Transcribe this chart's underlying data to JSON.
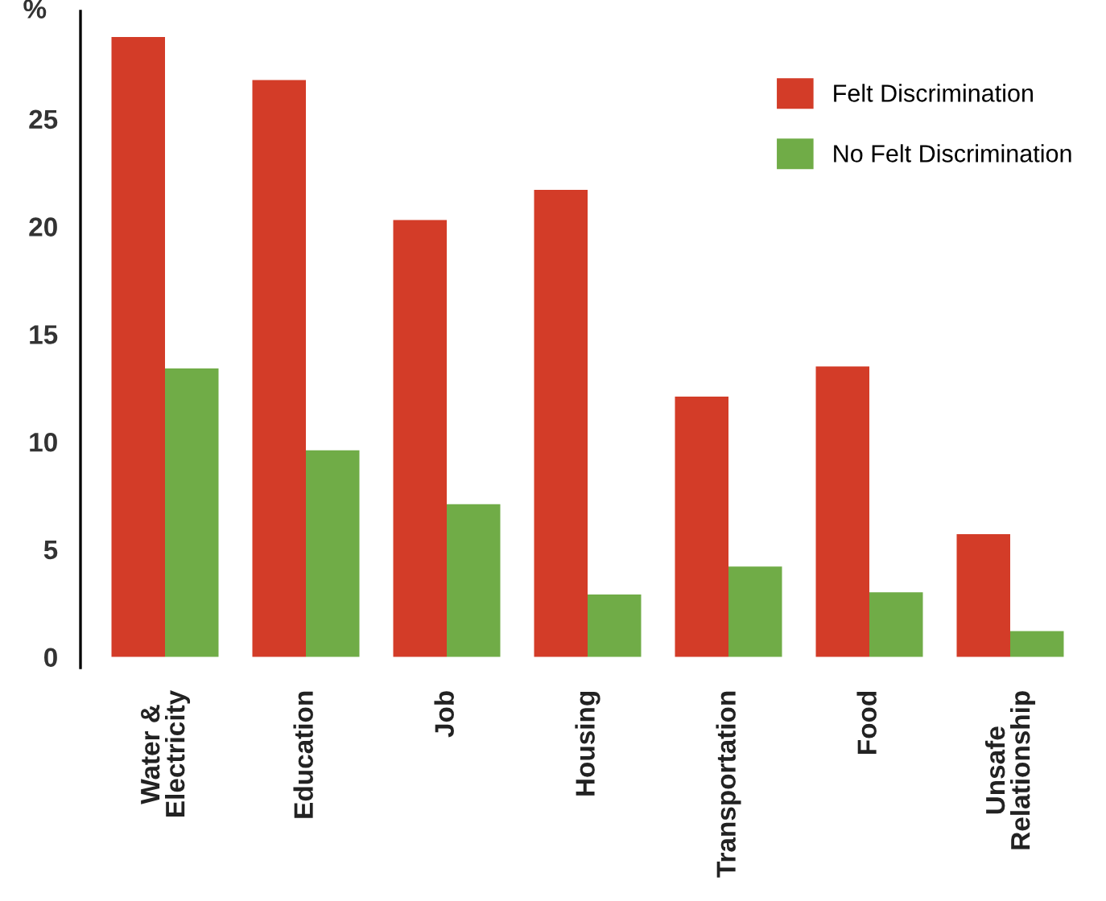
{
  "chart_data": {
    "type": "bar",
    "ylabel": "%",
    "categories": [
      "Water &\nElectricity",
      "Education",
      "Job",
      "Housing",
      "Transportation",
      "Food",
      "Unsafe\nRelationship"
    ],
    "series": [
      {
        "name": "Felt Discrimination",
        "color": "#d33c28",
        "values": [
          28.8,
          26.8,
          20.3,
          21.7,
          12.1,
          13.5,
          5.7
        ]
      },
      {
        "name": "No Felt Discrimination",
        "color": "#70ac47",
        "values": [
          13.4,
          9.6,
          7.1,
          2.9,
          4.2,
          3.0,
          1.2
        ]
      }
    ],
    "ylim": [
      -0.5,
      30
    ],
    "yticks": [
      0,
      5,
      10,
      15,
      20,
      25
    ],
    "grid": false,
    "legend": "top right"
  }
}
